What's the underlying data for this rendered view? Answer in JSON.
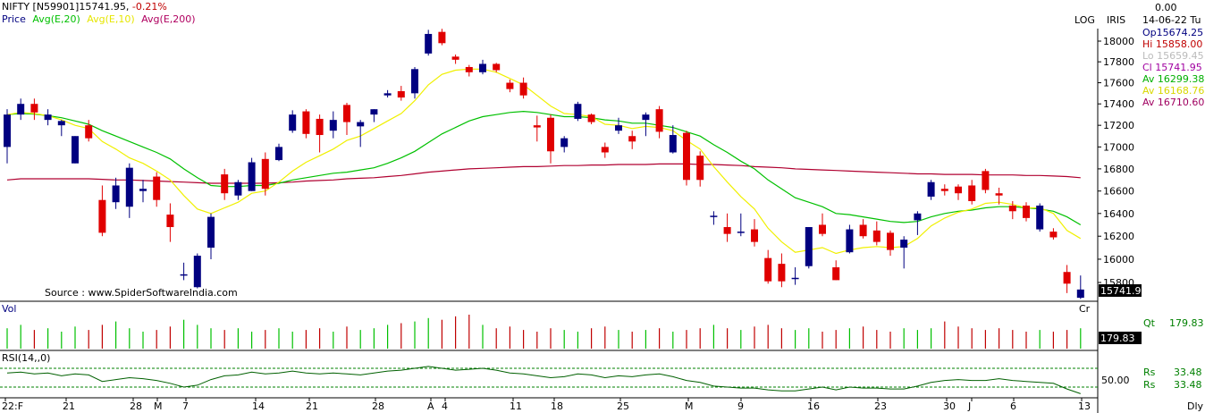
{
  "header": {
    "symbol": "NIFTY [N59901]",
    "last": "15741.95",
    "change": "-0.21%",
    "legend": [
      {
        "label": "Price",
        "color": "#000080"
      },
      {
        "label": "Avg(E,20)",
        "color": "#00c000"
      },
      {
        "label": "Avg(E,10)",
        "color": "#e6e600"
      },
      {
        "label": "Avg(E,200)",
        "color": "#b00060"
      }
    ],
    "log_label": "LOG",
    "iris_label": "IRIS",
    "source": "Source : www.SpiderSoftwareIndia.com"
  },
  "info_panel": {
    "value": "0.00",
    "date": "14-06-22 Tu",
    "rows": [
      {
        "label": "Op",
        "value": "15674.25",
        "color": "#000080"
      },
      {
        "label": "Hi",
        "value": "15858.00",
        "color": "#c00000"
      },
      {
        "label": "Lo",
        "value": "15659.45",
        "color": "#bbbbbb"
      },
      {
        "label": "Cl",
        "value": "15741.95",
        "color": "#a000a0"
      },
      {
        "label": "Av",
        "value": "16299.38",
        "color": "#00b000"
      },
      {
        "label": "Av",
        "value": "16168.76",
        "color": "#d8d800"
      },
      {
        "label": "Av",
        "value": "16710.60",
        "color": "#a00060"
      }
    ]
  },
  "price_axis": {
    "ticks": [
      "18000",
      "17800",
      "17600",
      "17400",
      "17200",
      "17000",
      "16800",
      "16600",
      "16400",
      "16200",
      "16000",
      "15800"
    ],
    "last_tag": "15741.9",
    "cr_label": "Cr"
  },
  "volume_panel": {
    "label": "Vol",
    "qt_label": "Qt",
    "qt_value": "179.83",
    "last_tag": "179.83"
  },
  "rsi_panel": {
    "label": "RSI(14,,0)",
    "axis_tick": "50.00",
    "rs_rows": [
      {
        "label": "Rs",
        "value": "33.48"
      },
      {
        "label": "Rs",
        "value": "33.48"
      }
    ]
  },
  "x_axis": {
    "labels": [
      "22:F",
      "21",
      "28",
      "M",
      "7",
      "14",
      "21",
      "28",
      "A",
      "4",
      "11",
      "18",
      "25",
      "M",
      "9",
      "16",
      "23",
      "30",
      "J",
      "6",
      "13"
    ],
    "period": "Dly"
  },
  "chart_data": {
    "type": "candlestick",
    "ylim": [
      15700,
      18100
    ],
    "y_scale": "log",
    "candles": [
      {
        "o": 17000,
        "h": 17350,
        "l": 16850,
        "c": 17300
      },
      {
        "o": 17300,
        "h": 17450,
        "l": 17250,
        "c": 17400
      },
      {
        "o": 17400,
        "h": 17450,
        "l": 17250,
        "c": 17320
      },
      {
        "o": 17250,
        "h": 17350,
        "l": 17200,
        "c": 17300
      },
      {
        "o": 17200,
        "h": 17250,
        "l": 17100,
        "c": 17240
      },
      {
        "o": 16850,
        "h": 17100,
        "l": 16850,
        "c": 17100
      },
      {
        "o": 17200,
        "h": 17250,
        "l": 17050,
        "c": 17080
      },
      {
        "o": 16520,
        "h": 16650,
        "l": 16200,
        "c": 16230
      },
      {
        "o": 16500,
        "h": 16720,
        "l": 16440,
        "c": 16650
      },
      {
        "o": 16460,
        "h": 16850,
        "l": 16360,
        "c": 16810
      },
      {
        "o": 16600,
        "h": 16700,
        "l": 16500,
        "c": 16620
      },
      {
        "o": 16730,
        "h": 16770,
        "l": 16460,
        "c": 16520
      },
      {
        "o": 16390,
        "h": 16490,
        "l": 16150,
        "c": 16280
      },
      {
        "o": 15870,
        "h": 15970,
        "l": 15820,
        "c": 15870
      },
      {
        "o": 15760,
        "h": 16050,
        "l": 15750,
        "c": 16030
      },
      {
        "o": 16100,
        "h": 16400,
        "l": 16000,
        "c": 16370
      },
      {
        "o": 16750,
        "h": 16800,
        "l": 16520,
        "c": 16580
      },
      {
        "o": 16560,
        "h": 16700,
        "l": 16520,
        "c": 16680
      },
      {
        "o": 16600,
        "h": 16900,
        "l": 16600,
        "c": 16860
      },
      {
        "o": 16890,
        "h": 16950,
        "l": 16560,
        "c": 16620
      },
      {
        "o": 16880,
        "h": 17030,
        "l": 16870,
        "c": 17000
      },
      {
        "o": 17150,
        "h": 17340,
        "l": 17130,
        "c": 17300
      },
      {
        "o": 17330,
        "h": 17350,
        "l": 17080,
        "c": 17120
      },
      {
        "o": 17260,
        "h": 17300,
        "l": 16950,
        "c": 17110
      },
      {
        "o": 17150,
        "h": 17330,
        "l": 17080,
        "c": 17250
      },
      {
        "o": 17390,
        "h": 17410,
        "l": 17110,
        "c": 17230
      },
      {
        "o": 17190,
        "h": 17250,
        "l": 17000,
        "c": 17230
      },
      {
        "o": 17300,
        "h": 17350,
        "l": 17230,
        "c": 17350
      },
      {
        "o": 17480,
        "h": 17530,
        "l": 17460,
        "c": 17500
      },
      {
        "o": 17520,
        "h": 17570,
        "l": 17430,
        "c": 17460
      },
      {
        "o": 17500,
        "h": 17750,
        "l": 17450,
        "c": 17730
      },
      {
        "o": 17880,
        "h": 18110,
        "l": 17860,
        "c": 18070
      },
      {
        "o": 18090,
        "h": 18120,
        "l": 17960,
        "c": 17980
      },
      {
        "o": 17850,
        "h": 17870,
        "l": 17780,
        "c": 17820
      },
      {
        "o": 17750,
        "h": 17770,
        "l": 17660,
        "c": 17700
      },
      {
        "o": 17700,
        "h": 17820,
        "l": 17680,
        "c": 17780
      },
      {
        "o": 17780,
        "h": 17790,
        "l": 17700,
        "c": 17720
      },
      {
        "o": 17600,
        "h": 17630,
        "l": 17510,
        "c": 17540
      },
      {
        "o": 17600,
        "h": 17650,
        "l": 17450,
        "c": 17480
      },
      {
        "o": 17200,
        "h": 17290,
        "l": 17050,
        "c": 17180
      },
      {
        "o": 17270,
        "h": 17300,
        "l": 16850,
        "c": 16960
      },
      {
        "o": 17000,
        "h": 17100,
        "l": 16950,
        "c": 17080
      },
      {
        "o": 17260,
        "h": 17420,
        "l": 17240,
        "c": 17400
      },
      {
        "o": 17300,
        "h": 17310,
        "l": 17210,
        "c": 17230
      },
      {
        "o": 17000,
        "h": 17040,
        "l": 16900,
        "c": 16950
      },
      {
        "o": 17150,
        "h": 17270,
        "l": 17120,
        "c": 17200
      },
      {
        "o": 17100,
        "h": 17150,
        "l": 16980,
        "c": 17050
      },
      {
        "o": 17250,
        "h": 17320,
        "l": 17100,
        "c": 17300
      },
      {
        "o": 17350,
        "h": 17380,
        "l": 17080,
        "c": 17140
      },
      {
        "o": 16950,
        "h": 17200,
        "l": 16940,
        "c": 17110
      },
      {
        "o": 17130,
        "h": 17150,
        "l": 16650,
        "c": 16700
      },
      {
        "o": 16920,
        "h": 16960,
        "l": 16640,
        "c": 16700
      },
      {
        "o": 16370,
        "h": 16420,
        "l": 16300,
        "c": 16380
      },
      {
        "o": 16280,
        "h": 16400,
        "l": 16150,
        "c": 16220
      },
      {
        "o": 16240,
        "h": 16400,
        "l": 16200,
        "c": 16240
      },
      {
        "o": 16260,
        "h": 16350,
        "l": 16110,
        "c": 16150
      },
      {
        "o": 16010,
        "h": 16080,
        "l": 15790,
        "c": 15810
      },
      {
        "o": 15960,
        "h": 16050,
        "l": 15760,
        "c": 15810
      },
      {
        "o": 15830,
        "h": 15930,
        "l": 15780,
        "c": 15840
      },
      {
        "o": 15940,
        "h": 16280,
        "l": 15920,
        "c": 16280
      },
      {
        "o": 16300,
        "h": 16400,
        "l": 16200,
        "c": 16220
      },
      {
        "o": 15930,
        "h": 15990,
        "l": 15820,
        "c": 15820
      },
      {
        "o": 16060,
        "h": 16300,
        "l": 16050,
        "c": 16260
      },
      {
        "o": 16300,
        "h": 16350,
        "l": 16180,
        "c": 16200
      },
      {
        "o": 16250,
        "h": 16330,
        "l": 16120,
        "c": 16150
      },
      {
        "o": 16230,
        "h": 16250,
        "l": 16030,
        "c": 16080
      },
      {
        "o": 16100,
        "h": 16200,
        "l": 15920,
        "c": 16170
      },
      {
        "o": 16340,
        "h": 16420,
        "l": 16210,
        "c": 16400
      },
      {
        "o": 16550,
        "h": 16700,
        "l": 16520,
        "c": 16680
      },
      {
        "o": 16620,
        "h": 16660,
        "l": 16560,
        "c": 16600
      },
      {
        "o": 16640,
        "h": 16660,
        "l": 16520,
        "c": 16580
      },
      {
        "o": 16650,
        "h": 16700,
        "l": 16480,
        "c": 16510
      },
      {
        "o": 16780,
        "h": 16800,
        "l": 16580,
        "c": 16610
      },
      {
        "o": 16580,
        "h": 16630,
        "l": 16480,
        "c": 16560
      },
      {
        "o": 16470,
        "h": 16510,
        "l": 16350,
        "c": 16420
      },
      {
        "o": 16470,
        "h": 16500,
        "l": 16330,
        "c": 16360
      },
      {
        "o": 16260,
        "h": 16490,
        "l": 16240,
        "c": 16470
      },
      {
        "o": 16240,
        "h": 16270,
        "l": 16170,
        "c": 16190
      },
      {
        "o": 15890,
        "h": 15950,
        "l": 15710,
        "c": 15790
      },
      {
        "o": 15670,
        "h": 15860,
        "l": 15660,
        "c": 15740
      }
    ],
    "ema20": [
      17300,
      17310,
      17305,
      17290,
      17270,
      17240,
      17210,
      17150,
      17100,
      17050,
      17000,
      16950,
      16890,
      16800,
      16720,
      16650,
      16640,
      16640,
      16650,
      16650,
      16670,
      16700,
      16720,
      16740,
      16760,
      16770,
      16790,
      16810,
      16850,
      16900,
      16960,
      17040,
      17120,
      17180,
      17240,
      17280,
      17300,
      17320,
      17330,
      17320,
      17300,
      17280,
      17280,
      17270,
      17250,
      17240,
      17220,
      17220,
      17200,
      17180,
      17140,
      17100,
      17020,
      16950,
      16870,
      16800,
      16700,
      16620,
      16540,
      16500,
      16460,
      16400,
      16390,
      16370,
      16350,
      16330,
      16320,
      16330,
      16370,
      16400,
      16420,
      16430,
      16450,
      16460,
      16460,
      16450,
      16440,
      16420,
      16370,
      16300
    ],
    "ema10": [
      17300,
      17320,
      17310,
      17290,
      17250,
      17200,
      17170,
      17050,
      16980,
      16900,
      16850,
      16780,
      16700,
      16560,
      16440,
      16400,
      16450,
      16500,
      16580,
      16600,
      16680,
      16780,
      16860,
      16920,
      16980,
      17060,
      17100,
      17170,
      17240,
      17310,
      17430,
      17580,
      17680,
      17720,
      17730,
      17730,
      17700,
      17640,
      17580,
      17480,
      17380,
      17310,
      17300,
      17280,
      17210,
      17200,
      17170,
      17190,
      17180,
      17150,
      17060,
      16980,
      16820,
      16680,
      16550,
      16440,
      16270,
      16150,
      16060,
      16080,
      16100,
      16050,
      16080,
      16100,
      16110,
      16100,
      16110,
      16180,
      16290,
      16360,
      16410,
      16440,
      16490,
      16500,
      16480,
      16450,
      16450,
      16400,
      16250,
      16180
    ],
    "ema200": [
      16700,
      16710,
      16710,
      16710,
      16710,
      16710,
      16710,
      16705,
      16700,
      16700,
      16695,
      16690,
      16685,
      16680,
      16675,
      16670,
      16670,
      16670,
      16670,
      16670,
      16675,
      16680,
      16690,
      16695,
      16700,
      16710,
      16715,
      16720,
      16730,
      16740,
      16755,
      16770,
      16780,
      16790,
      16800,
      16805,
      16810,
      16815,
      16820,
      16820,
      16825,
      16830,
      16830,
      16835,
      16835,
      16840,
      16840,
      16840,
      16845,
      16845,
      16845,
      16840,
      16840,
      16835,
      16830,
      16820,
      16815,
      16810,
      16800,
      16795,
      16790,
      16785,
      16780,
      16775,
      16770,
      16765,
      16760,
      16755,
      16755,
      16750,
      16750,
      16750,
      16745,
      16745,
      16745,
      16740,
      16740,
      16735,
      16730,
      16720
    ],
    "volume": [
      0.6,
      0.7,
      0.55,
      0.6,
      0.5,
      0.65,
      0.55,
      0.7,
      0.8,
      0.6,
      0.5,
      0.55,
      0.65,
      0.85,
      0.7,
      0.6,
      0.55,
      0.6,
      0.5,
      0.55,
      0.6,
      0.5,
      0.55,
      0.6,
      0.5,
      0.65,
      0.55,
      0.6,
      0.7,
      0.75,
      0.8,
      0.9,
      0.85,
      0.95,
      1.0,
      0.7,
      0.6,
      0.65,
      0.55,
      0.5,
      0.6,
      0.55,
      0.5,
      0.6,
      0.65,
      0.55,
      0.5,
      0.55,
      0.6,
      0.5,
      0.55,
      0.6,
      0.7,
      0.6,
      0.55,
      0.65,
      0.7,
      0.6,
      0.55,
      0.6,
      0.5,
      0.55,
      0.6,
      0.65,
      0.55,
      0.5,
      0.6,
      0.55,
      0.6,
      0.8,
      0.65,
      0.6,
      0.55,
      0.6,
      0.55,
      0.5,
      0.55,
      0.5,
      0.55,
      0.6
    ],
    "rsi": [
      55,
      56,
      54,
      55,
      52,
      54,
      53,
      46,
      48,
      50,
      49,
      47,
      44,
      40,
      42,
      48,
      52,
      53,
      56,
      54,
      55,
      57,
      55,
      54,
      55,
      54,
      53,
      55,
      57,
      58,
      60,
      62,
      60,
      58,
      59,
      60,
      58,
      55,
      54,
      52,
      50,
      51,
      54,
      53,
      50,
      52,
      51,
      53,
      54,
      51,
      47,
      45,
      41,
      40,
      39,
      39,
      37,
      36,
      36,
      38,
      40,
      37,
      40,
      39,
      39,
      38,
      38,
      41,
      45,
      47,
      48,
      47,
      47,
      49,
      47,
      46,
      45,
      44,
      38,
      33
    ]
  }
}
